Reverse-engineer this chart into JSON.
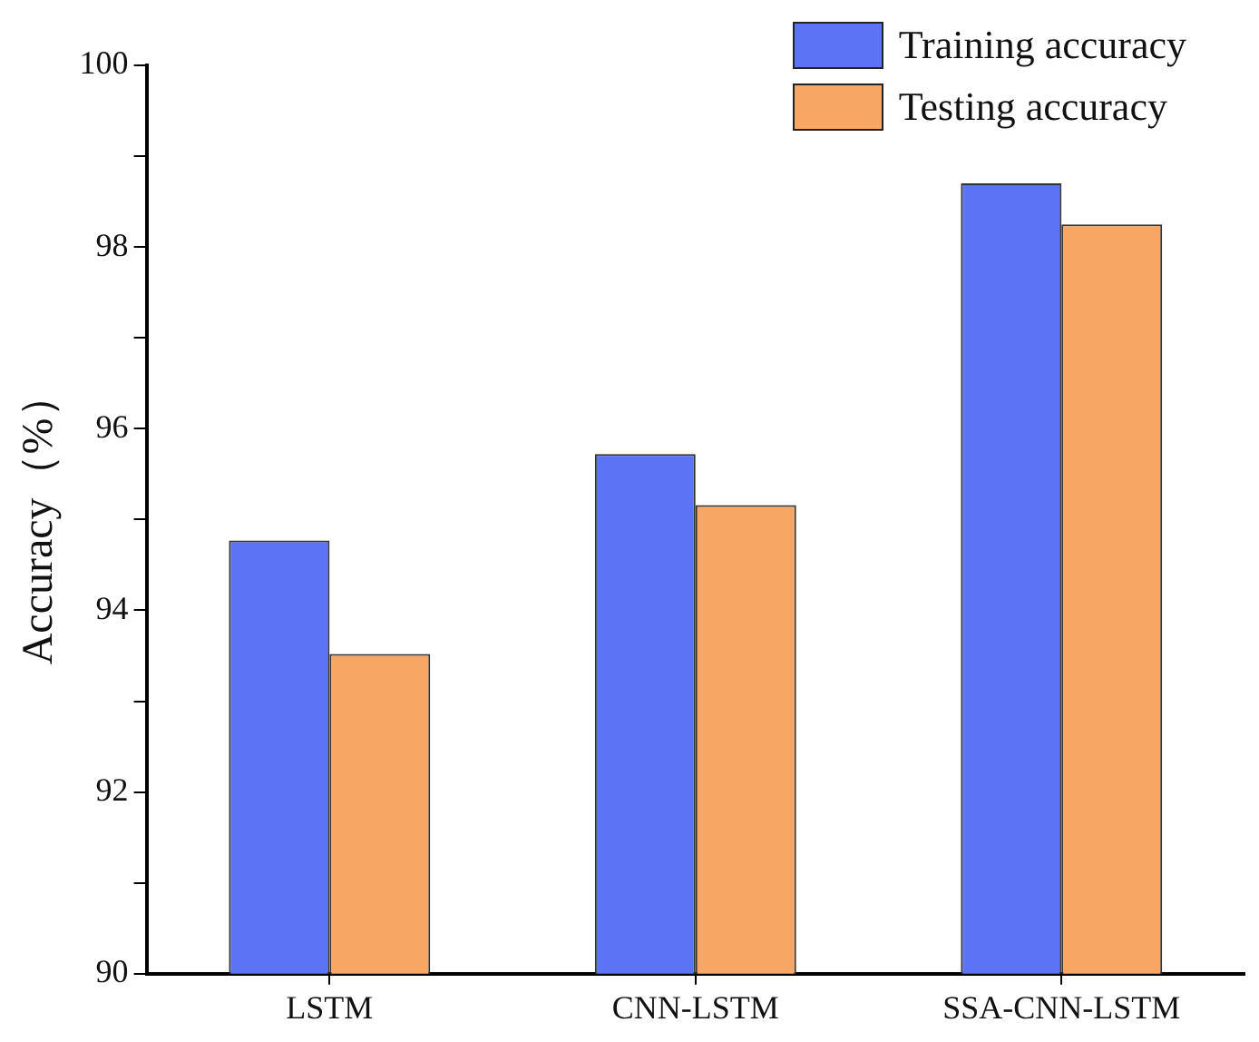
{
  "chart_data": {
    "type": "bar",
    "ylabel": "Accuracy（%）",
    "categories": [
      "LSTM",
      "CNN-LSTM",
      "SSA-CNN-LSTM"
    ],
    "series": [
      {
        "name": "Training accuracy",
        "color": "#5b73f5",
        "values": [
          94.77,
          95.72,
          98.7
        ]
      },
      {
        "name": "Testing accuracy",
        "color": "#f7a663",
        "values": [
          93.52,
          95.16,
          98.25
        ]
      }
    ],
    "ylim": [
      90,
      100
    ],
    "yticks": [
      90,
      {
        "value": 91,
        "label": null
      },
      92,
      {
        "value": 93,
        "label": null
      },
      94,
      {
        "value": 95,
        "label": null
      },
      96,
      {
        "value": 97,
        "label": null
      },
      98,
      {
        "value": 99,
        "label": null
      },
      100
    ],
    "grid": false,
    "legend": "top right"
  }
}
